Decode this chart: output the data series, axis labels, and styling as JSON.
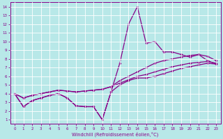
{
  "xlabel": "Windchill (Refroidissement éolien,°C)",
  "bg_color": "#b8e8e8",
  "line_color": "#880088",
  "grid_color": "#ffffff",
  "xlim": [
    -0.5,
    23.5
  ],
  "ylim": [
    0.5,
    14.5
  ],
  "xticks": [
    0,
    1,
    2,
    3,
    4,
    5,
    6,
    7,
    8,
    9,
    10,
    11,
    12,
    13,
    14,
    15,
    16,
    17,
    18,
    19,
    20,
    21,
    22,
    23
  ],
  "yticks": [
    1,
    2,
    3,
    4,
    5,
    6,
    7,
    8,
    9,
    10,
    11,
    12,
    13,
    14
  ],
  "line1_x": [
    0,
    1,
    2,
    3,
    4,
    5,
    6,
    7,
    8,
    9,
    10,
    11,
    12,
    13,
    14,
    15,
    16,
    17,
    18,
    19,
    20,
    21,
    22,
    23
  ],
  "line1_y": [
    4.0,
    2.5,
    3.2,
    3.5,
    3.8,
    4.0,
    3.5,
    2.6,
    2.5,
    2.5,
    1.0,
    4.2,
    7.5,
    12.0,
    14.0,
    9.8,
    10.0,
    8.8,
    8.8,
    8.5,
    8.2,
    8.5,
    7.8,
    7.4
  ],
  "line2_x": [
    0,
    1,
    2,
    3,
    4,
    5,
    6,
    7,
    8,
    9,
    10,
    11,
    12,
    13,
    14,
    15,
    16,
    17,
    18,
    19,
    20,
    21,
    22,
    23
  ],
  "line2_y": [
    4.0,
    2.5,
    3.2,
    3.5,
    3.8,
    4.0,
    3.5,
    2.6,
    2.5,
    2.5,
    1.0,
    4.2,
    5.0,
    5.5,
    5.8,
    5.8,
    6.0,
    6.3,
    6.6,
    6.9,
    7.1,
    7.3,
    7.5,
    7.4
  ],
  "line3_x": [
    0,
    1,
    2,
    3,
    4,
    5,
    6,
    7,
    8,
    9,
    10,
    11,
    12,
    13,
    14,
    15,
    16,
    17,
    18,
    19,
    20,
    21,
    22,
    23
  ],
  "line3_y": [
    4.0,
    3.5,
    3.8,
    4.0,
    4.2,
    4.4,
    4.3,
    4.2,
    4.3,
    4.4,
    4.5,
    4.8,
    5.2,
    5.6,
    6.0,
    6.2,
    6.5,
    6.8,
    7.1,
    7.3,
    7.5,
    7.6,
    7.7,
    7.5
  ],
  "line4_x": [
    0,
    1,
    2,
    3,
    4,
    5,
    6,
    7,
    8,
    9,
    10,
    11,
    12,
    13,
    14,
    15,
    16,
    17,
    18,
    19,
    20,
    21,
    22,
    23
  ],
  "line4_y": [
    4.0,
    3.5,
    3.8,
    4.0,
    4.2,
    4.4,
    4.3,
    4.2,
    4.3,
    4.4,
    4.5,
    4.8,
    5.5,
    6.0,
    6.5,
    7.0,
    7.5,
    7.8,
    8.0,
    8.2,
    8.4,
    8.5,
    8.3,
    7.8
  ]
}
